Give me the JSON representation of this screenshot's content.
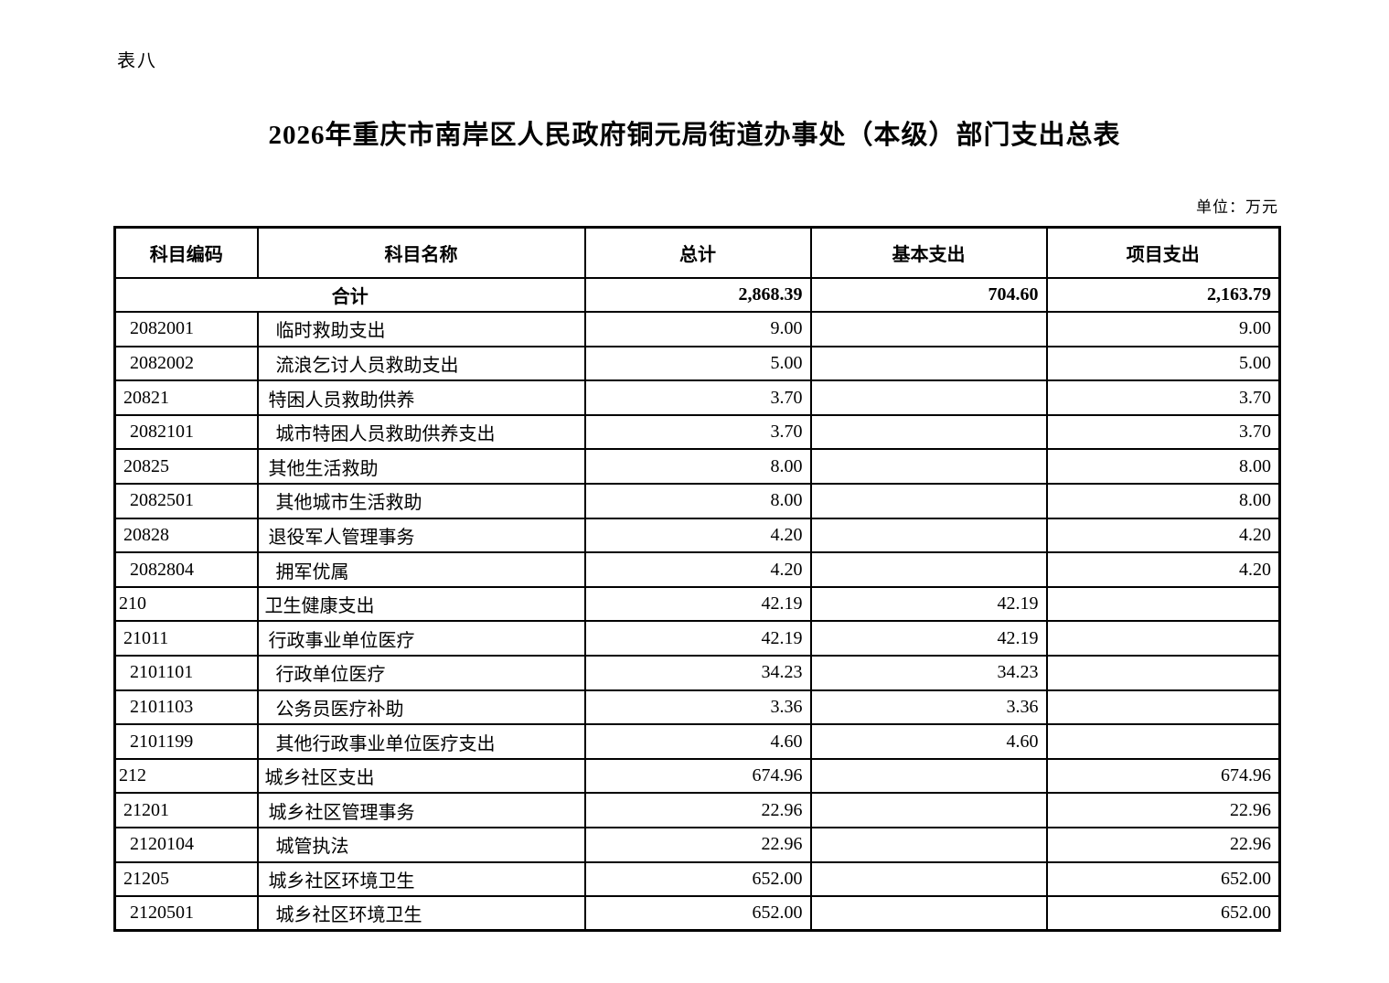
{
  "page": {
    "sheet_label": "表八",
    "title": "2026年重庆市南岸区人民政府铜元局街道办事处（本级）部门支出总表",
    "unit_note": "单位：万元"
  },
  "table": {
    "columns": [
      "科目编码",
      "科目名称",
      "总计",
      "基本支出",
      "项目支出"
    ],
    "total_row": {
      "label": "合计",
      "total": "2,868.39",
      "basic": "704.60",
      "project": "2,163.79"
    },
    "rows": [
      {
        "code": "2082001",
        "name": "临时救助支出",
        "level": 2,
        "total": "9.00",
        "basic": "",
        "project": "9.00"
      },
      {
        "code": "2082002",
        "name": "流浪乞讨人员救助支出",
        "level": 2,
        "total": "5.00",
        "basic": "",
        "project": "5.00"
      },
      {
        "code": "20821",
        "name": "特困人员救助供养",
        "level": 1,
        "total": "3.70",
        "basic": "",
        "project": "3.70"
      },
      {
        "code": "2082101",
        "name": "城市特困人员救助供养支出",
        "level": 2,
        "total": "3.70",
        "basic": "",
        "project": "3.70"
      },
      {
        "code": "20825",
        "name": "其他生活救助",
        "level": 1,
        "total": "8.00",
        "basic": "",
        "project": "8.00"
      },
      {
        "code": "2082501",
        "name": "其他城市生活救助",
        "level": 2,
        "total": "8.00",
        "basic": "",
        "project": "8.00"
      },
      {
        "code": "20828",
        "name": "退役军人管理事务",
        "level": 1,
        "total": "4.20",
        "basic": "",
        "project": "4.20"
      },
      {
        "code": "2082804",
        "name": "拥军优属",
        "level": 2,
        "total": "4.20",
        "basic": "",
        "project": "4.20"
      },
      {
        "code": "210",
        "name": "卫生健康支出",
        "level": 0,
        "total": "42.19",
        "basic": "42.19",
        "project": ""
      },
      {
        "code": "21011",
        "name": "行政事业单位医疗",
        "level": 1,
        "total": "42.19",
        "basic": "42.19",
        "project": ""
      },
      {
        "code": "2101101",
        "name": "行政单位医疗",
        "level": 2,
        "total": "34.23",
        "basic": "34.23",
        "project": ""
      },
      {
        "code": "2101103",
        "name": "公务员医疗补助",
        "level": 2,
        "total": "3.36",
        "basic": "3.36",
        "project": ""
      },
      {
        "code": "2101199",
        "name": "其他行政事业单位医疗支出",
        "level": 2,
        "total": "4.60",
        "basic": "4.60",
        "project": ""
      },
      {
        "code": "212",
        "name": "城乡社区支出",
        "level": 0,
        "total": "674.96",
        "basic": "",
        "project": "674.96"
      },
      {
        "code": "21201",
        "name": "城乡社区管理事务",
        "level": 1,
        "total": "22.96",
        "basic": "",
        "project": "22.96"
      },
      {
        "code": "2120104",
        "name": "城管执法",
        "level": 2,
        "total": "22.96",
        "basic": "",
        "project": "22.96"
      },
      {
        "code": "21205",
        "name": "城乡社区环境卫生",
        "level": 1,
        "total": "652.00",
        "basic": "",
        "project": "652.00"
      },
      {
        "code": "2120501",
        "name": "城乡社区环境卫生",
        "level": 2,
        "total": "652.00",
        "basic": "",
        "project": "652.00"
      }
    ]
  }
}
